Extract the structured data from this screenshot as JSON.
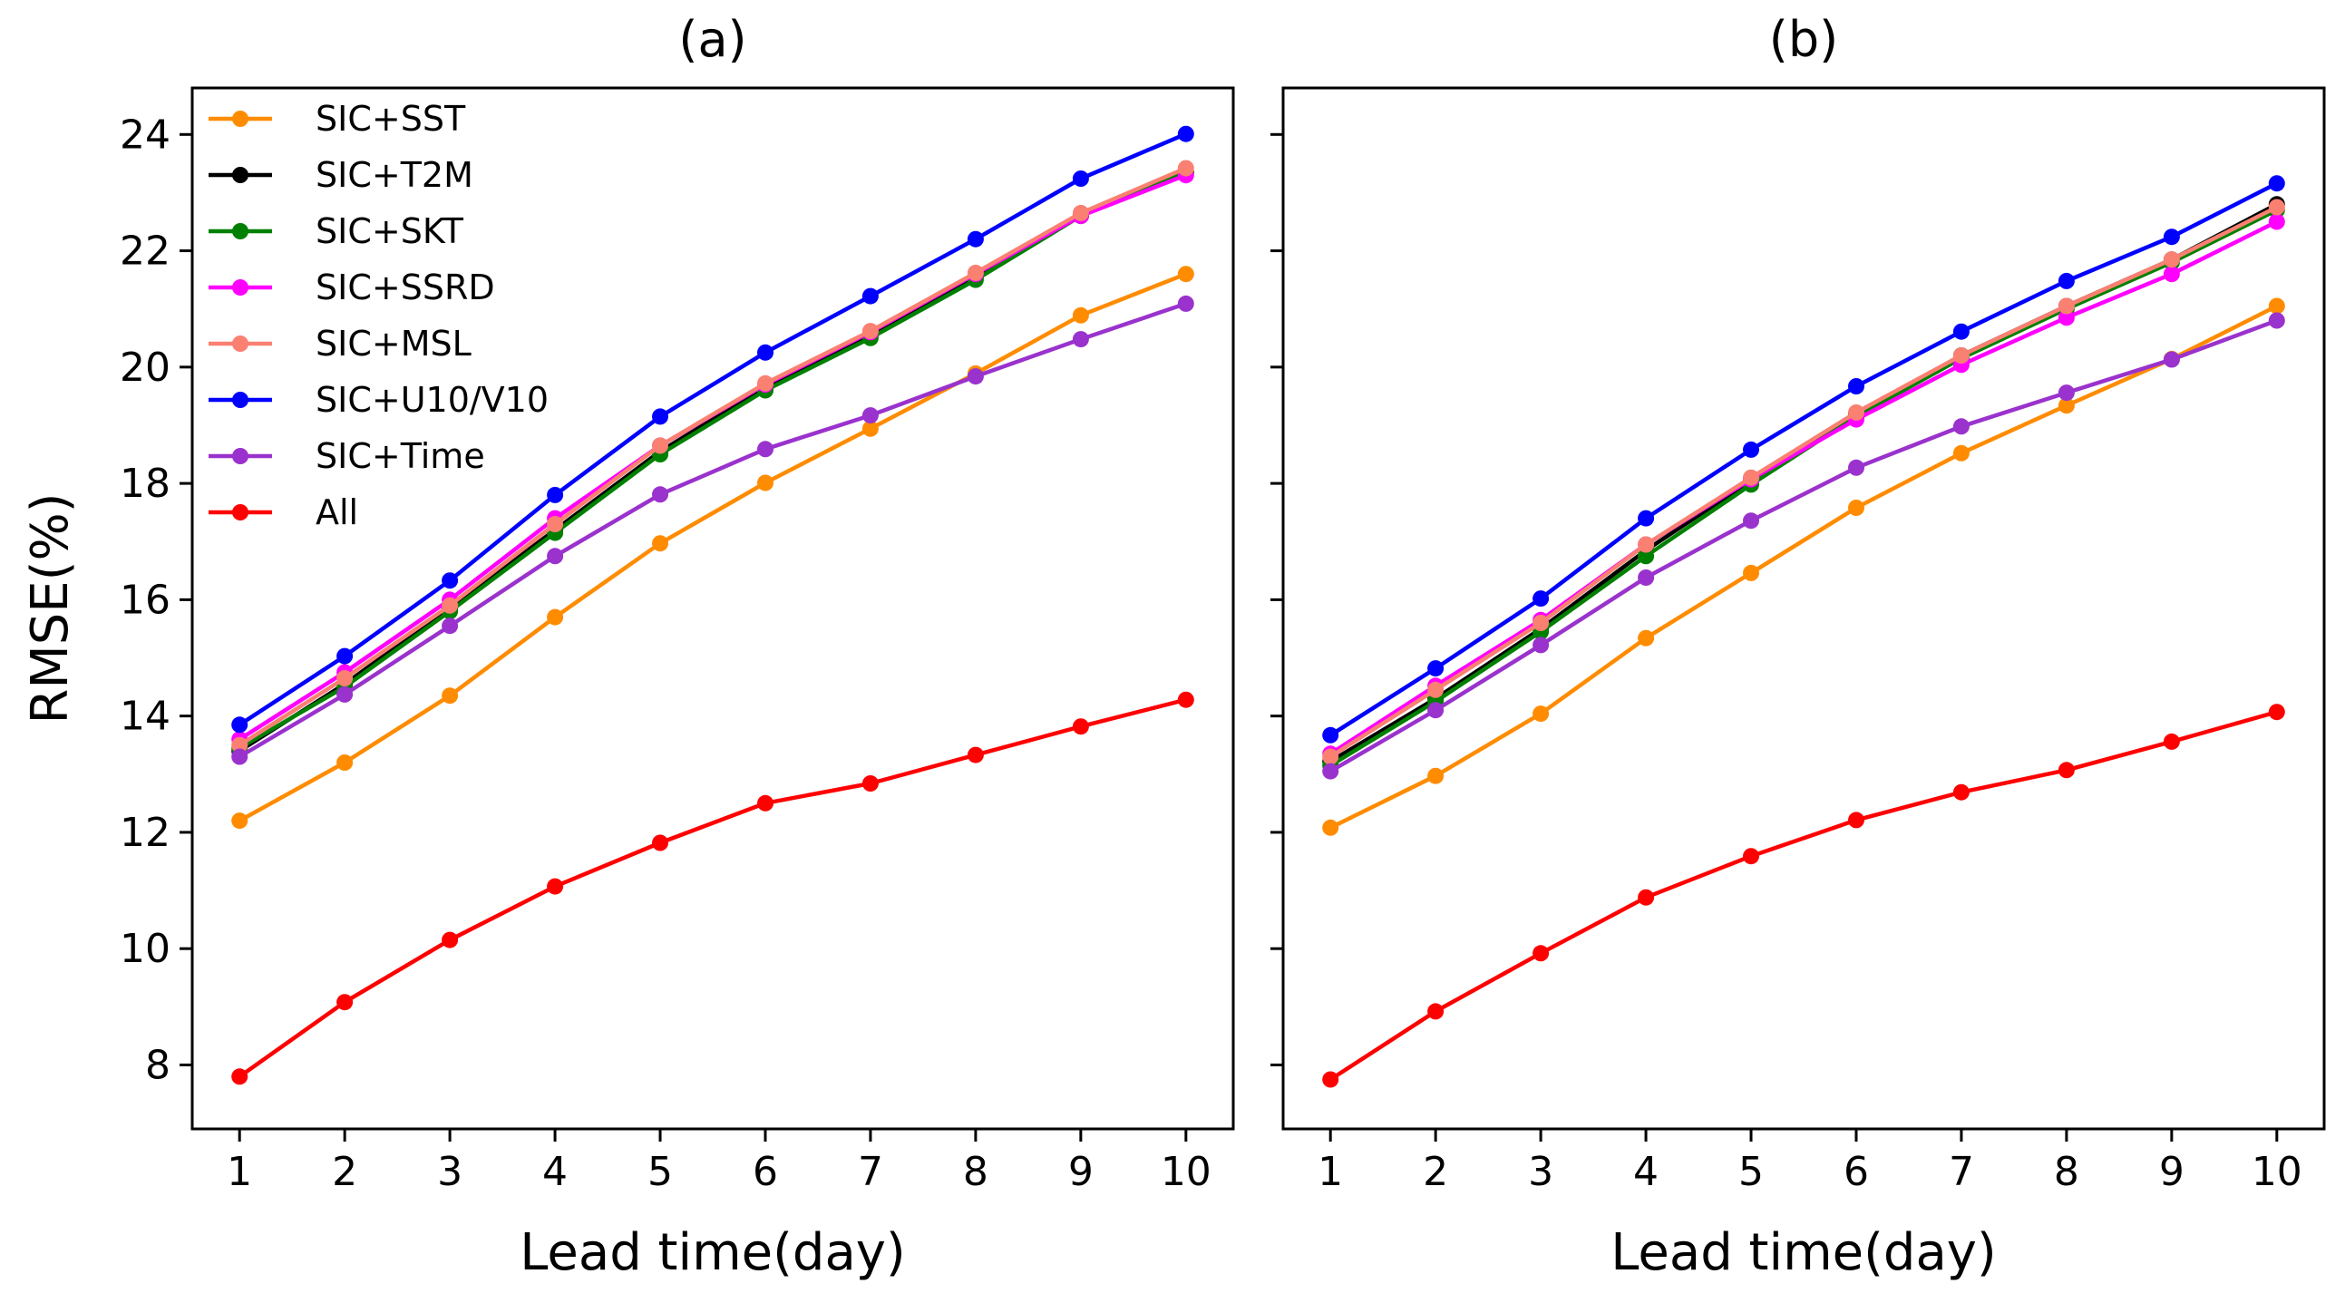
{
  "chart_data": [
    {
      "type": "line",
      "title": "(a)",
      "xlabel": "Lead time(day)",
      "ylabel": "RMSE(%)",
      "x": [
        1,
        2,
        3,
        4,
        5,
        6,
        7,
        8,
        9,
        10
      ],
      "xlim": [
        0.55,
        10.45
      ],
      "ylim": [
        6.9,
        24.8
      ],
      "yticks": [
        8,
        10,
        12,
        14,
        16,
        18,
        20,
        22,
        24
      ],
      "legend_position": "upper-left",
      "grid": false,
      "series": [
        {
          "name": "SIC+SST",
          "color": "#ff8c00",
          "values": [
            12.2,
            13.2,
            14.35,
            15.7,
            16.97,
            18.01,
            18.94,
            19.89,
            20.89,
            21.6
          ]
        },
        {
          "name": "SIC+T2M",
          "color": "#000000",
          "values": [
            13.4,
            14.55,
            15.85,
            17.2,
            18.55,
            19.65,
            20.55,
            21.55,
            22.6,
            23.35
          ]
        },
        {
          "name": "SIC+SKT",
          "color": "#008000",
          "values": [
            13.45,
            14.5,
            15.8,
            17.15,
            18.5,
            19.6,
            20.5,
            21.5,
            22.6,
            23.35
          ]
        },
        {
          "name": "SIC+SSRD",
          "color": "#ff00ff",
          "values": [
            13.6,
            14.75,
            16.0,
            17.4,
            18.65,
            19.7,
            20.6,
            21.6,
            22.6,
            23.3
          ]
        },
        {
          "name": "SIC+MSL",
          "color": "#fa8072",
          "values": [
            13.5,
            14.65,
            15.9,
            17.3,
            18.65,
            19.72,
            20.62,
            21.62,
            22.65,
            23.42
          ]
        },
        {
          "name": "SIC+U10/V10",
          "color": "#0000ff",
          "values": [
            13.85,
            15.03,
            16.33,
            17.8,
            19.15,
            20.25,
            21.22,
            22.2,
            23.24,
            24.01
          ]
        },
        {
          "name": "SIC+Time",
          "color": "#9a32cd",
          "values": [
            13.3,
            14.37,
            15.55,
            16.75,
            17.81,
            18.59,
            19.17,
            19.84,
            20.48,
            21.09
          ]
        },
        {
          "name": "All",
          "color": "#ff0000",
          "values": [
            7.8,
            9.08,
            10.15,
            11.07,
            11.82,
            12.5,
            12.84,
            13.33,
            13.82,
            14.28
          ]
        }
      ]
    },
    {
      "type": "line",
      "title": "(b)",
      "xlabel": "Lead time(day)",
      "ylabel": "",
      "x": [
        1,
        2,
        3,
        4,
        5,
        6,
        7,
        8,
        9,
        10
      ],
      "xlim": [
        0.55,
        10.45
      ],
      "ylim": [
        6.9,
        24.8
      ],
      "yticks": [
        8,
        10,
        12,
        14,
        16,
        18,
        20,
        22,
        24
      ],
      "show_ytick_labels": false,
      "grid": false,
      "series": [
        {
          "name": "SIC+SST",
          "color": "#ff8c00",
          "values": [
            12.08,
            12.97,
            14.04,
            15.34,
            16.46,
            17.58,
            18.52,
            19.34,
            20.14,
            21.05
          ]
        },
        {
          "name": "SIC+T2M",
          "color": "#000000",
          "values": [
            13.22,
            14.3,
            15.5,
            16.85,
            18.05,
            19.2,
            20.2,
            21.05,
            21.85,
            22.8
          ]
        },
        {
          "name": "SIC+SKT",
          "color": "#008000",
          "values": [
            13.15,
            14.25,
            15.45,
            16.75,
            17.98,
            19.15,
            20.15,
            21.0,
            21.8,
            22.7
          ]
        },
        {
          "name": "SIC+SSRD",
          "color": "#ff00ff",
          "values": [
            13.35,
            14.52,
            15.65,
            16.95,
            18.07,
            19.1,
            20.04,
            20.85,
            21.6,
            22.5
          ]
        },
        {
          "name": "SIC+MSL",
          "color": "#fa8072",
          "values": [
            13.3,
            14.45,
            15.6,
            16.95,
            18.1,
            19.22,
            20.2,
            21.05,
            21.85,
            22.75
          ]
        },
        {
          "name": "SIC+U10/V10",
          "color": "#0000ff",
          "values": [
            13.67,
            14.82,
            16.02,
            17.4,
            18.58,
            19.67,
            20.61,
            21.48,
            22.24,
            23.16
          ]
        },
        {
          "name": "SIC+Time",
          "color": "#9a32cd",
          "values": [
            13.05,
            14.1,
            15.22,
            16.38,
            17.36,
            18.27,
            18.98,
            19.56,
            20.13,
            20.8
          ]
        },
        {
          "name": "All",
          "color": "#ff0000",
          "values": [
            7.75,
            8.92,
            9.92,
            10.88,
            11.59,
            12.21,
            12.69,
            13.07,
            13.56,
            14.07
          ]
        }
      ]
    }
  ]
}
